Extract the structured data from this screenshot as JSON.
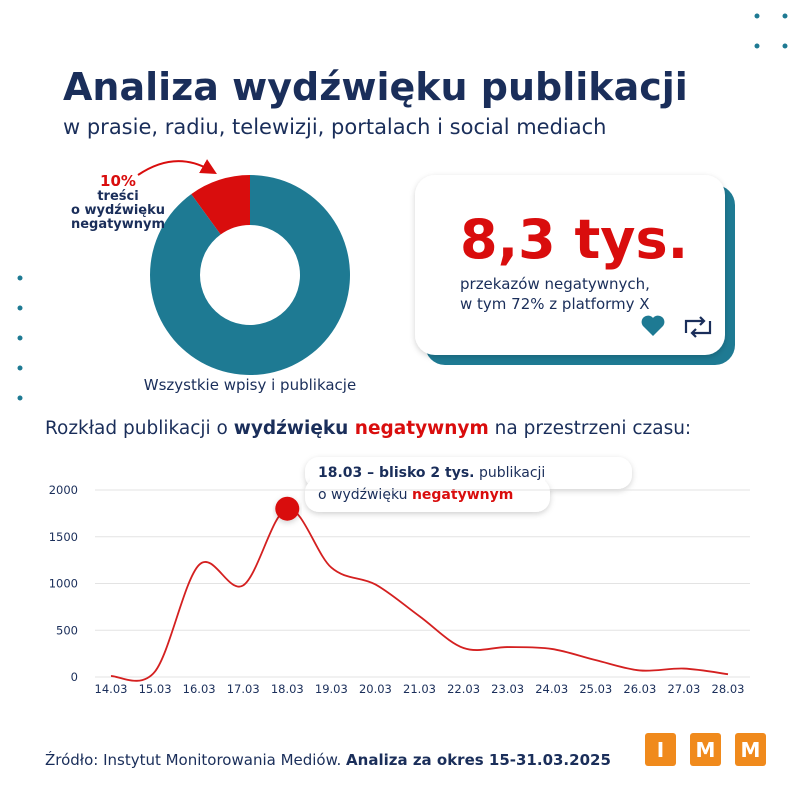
{
  "header": {
    "title": "Analiza wydźwięku publikacji",
    "subtitle": "w prasie, radiu, telewizji, portalach i social mediach"
  },
  "chart_data": [
    {
      "type": "pie",
      "categories": [
        "treści\no wydźwięku\nnegatywnym",
        "Wszystkie wpisy i publikacje"
      ],
      "values": [
        10,
        90
      ],
      "value_labels": [
        "10%",
        null
      ],
      "colors": [
        "#d90d0d",
        "#1e7a93"
      ]
    },
    {
      "type": "line",
      "title": [
        "Rozkład publikacji o ",
        "wydźwięku ",
        "negatywnym",
        " na przestrzeni czasu:"
      ],
      "categories": [
        "14.03",
        "15.03",
        "16.03",
        "17.03",
        "18.03",
        "19.03",
        "20.03",
        "21.03",
        "22.03",
        "23.03",
        "24.03",
        "25.03",
        "26.03",
        "27.03",
        "28.03"
      ],
      "series": [
        {
          "name": null,
          "color": "#d42020",
          "values": [
            10,
            60,
            1200,
            980,
            1800,
            1170,
            990,
            650,
            310,
            320,
            300,
            180,
            70,
            90,
            30
          ]
        }
      ],
      "ylim": [
        0,
        2000
      ],
      "yticks": [
        0,
        500,
        1000,
        1500,
        2000
      ],
      "grid": true,
      "annotation": {
        "bold": "18.03 – blisko 2 tys.",
        "rest": " publikacji",
        "line2": "o wydźwięku ",
        "highlight": "negatywnym"
      }
    }
  ],
  "stat_card": {
    "value": "8,3 tys.",
    "lines": [
      "przekazów negatywnych,",
      "w tym 72% z platformy X"
    ]
  },
  "footer": {
    "source": "Źródło: Instytut Monitorowania Mediów. ",
    "period": "Analiza za okres 15-31.03.2025"
  },
  "logo": [
    "I",
    "M",
    "M"
  ]
}
